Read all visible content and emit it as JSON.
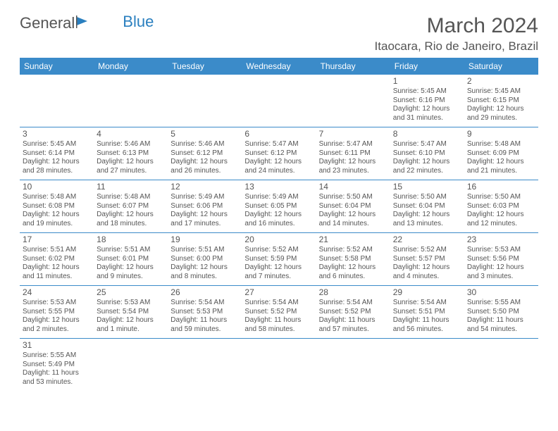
{
  "logo": {
    "text1": "General",
    "text2": "Blue",
    "icon_color": "#2a7fbf"
  },
  "title": "March 2024",
  "location": "Itaocara, Rio de Janeiro, Brazil",
  "colors": {
    "header_bg": "#3b8bc9",
    "header_text": "#ffffff",
    "border": "#3b8bc9",
    "text": "#555555"
  },
  "weekdays": [
    "Sunday",
    "Monday",
    "Tuesday",
    "Wednesday",
    "Thursday",
    "Friday",
    "Saturday"
  ],
  "weeks": [
    [
      null,
      null,
      null,
      null,
      null,
      {
        "n": "1",
        "sr": "Sunrise: 5:45 AM",
        "ss": "Sunset: 6:16 PM",
        "dl": "Daylight: 12 hours and 31 minutes."
      },
      {
        "n": "2",
        "sr": "Sunrise: 5:45 AM",
        "ss": "Sunset: 6:15 PM",
        "dl": "Daylight: 12 hours and 29 minutes."
      }
    ],
    [
      {
        "n": "3",
        "sr": "Sunrise: 5:45 AM",
        "ss": "Sunset: 6:14 PM",
        "dl": "Daylight: 12 hours and 28 minutes."
      },
      {
        "n": "4",
        "sr": "Sunrise: 5:46 AM",
        "ss": "Sunset: 6:13 PM",
        "dl": "Daylight: 12 hours and 27 minutes."
      },
      {
        "n": "5",
        "sr": "Sunrise: 5:46 AM",
        "ss": "Sunset: 6:12 PM",
        "dl": "Daylight: 12 hours and 26 minutes."
      },
      {
        "n": "6",
        "sr": "Sunrise: 5:47 AM",
        "ss": "Sunset: 6:12 PM",
        "dl": "Daylight: 12 hours and 24 minutes."
      },
      {
        "n": "7",
        "sr": "Sunrise: 5:47 AM",
        "ss": "Sunset: 6:11 PM",
        "dl": "Daylight: 12 hours and 23 minutes."
      },
      {
        "n": "8",
        "sr": "Sunrise: 5:47 AM",
        "ss": "Sunset: 6:10 PM",
        "dl": "Daylight: 12 hours and 22 minutes."
      },
      {
        "n": "9",
        "sr": "Sunrise: 5:48 AM",
        "ss": "Sunset: 6:09 PM",
        "dl": "Daylight: 12 hours and 21 minutes."
      }
    ],
    [
      {
        "n": "10",
        "sr": "Sunrise: 5:48 AM",
        "ss": "Sunset: 6:08 PM",
        "dl": "Daylight: 12 hours and 19 minutes."
      },
      {
        "n": "11",
        "sr": "Sunrise: 5:48 AM",
        "ss": "Sunset: 6:07 PM",
        "dl": "Daylight: 12 hours and 18 minutes."
      },
      {
        "n": "12",
        "sr": "Sunrise: 5:49 AM",
        "ss": "Sunset: 6:06 PM",
        "dl": "Daylight: 12 hours and 17 minutes."
      },
      {
        "n": "13",
        "sr": "Sunrise: 5:49 AM",
        "ss": "Sunset: 6:05 PM",
        "dl": "Daylight: 12 hours and 16 minutes."
      },
      {
        "n": "14",
        "sr": "Sunrise: 5:50 AM",
        "ss": "Sunset: 6:04 PM",
        "dl": "Daylight: 12 hours and 14 minutes."
      },
      {
        "n": "15",
        "sr": "Sunrise: 5:50 AM",
        "ss": "Sunset: 6:04 PM",
        "dl": "Daylight: 12 hours and 13 minutes."
      },
      {
        "n": "16",
        "sr": "Sunrise: 5:50 AM",
        "ss": "Sunset: 6:03 PM",
        "dl": "Daylight: 12 hours and 12 minutes."
      }
    ],
    [
      {
        "n": "17",
        "sr": "Sunrise: 5:51 AM",
        "ss": "Sunset: 6:02 PM",
        "dl": "Daylight: 12 hours and 11 minutes."
      },
      {
        "n": "18",
        "sr": "Sunrise: 5:51 AM",
        "ss": "Sunset: 6:01 PM",
        "dl": "Daylight: 12 hours and 9 minutes."
      },
      {
        "n": "19",
        "sr": "Sunrise: 5:51 AM",
        "ss": "Sunset: 6:00 PM",
        "dl": "Daylight: 12 hours and 8 minutes."
      },
      {
        "n": "20",
        "sr": "Sunrise: 5:52 AM",
        "ss": "Sunset: 5:59 PM",
        "dl": "Daylight: 12 hours and 7 minutes."
      },
      {
        "n": "21",
        "sr": "Sunrise: 5:52 AM",
        "ss": "Sunset: 5:58 PM",
        "dl": "Daylight: 12 hours and 6 minutes."
      },
      {
        "n": "22",
        "sr": "Sunrise: 5:52 AM",
        "ss": "Sunset: 5:57 PM",
        "dl": "Daylight: 12 hours and 4 minutes."
      },
      {
        "n": "23",
        "sr": "Sunrise: 5:53 AM",
        "ss": "Sunset: 5:56 PM",
        "dl": "Daylight: 12 hours and 3 minutes."
      }
    ],
    [
      {
        "n": "24",
        "sr": "Sunrise: 5:53 AM",
        "ss": "Sunset: 5:55 PM",
        "dl": "Daylight: 12 hours and 2 minutes."
      },
      {
        "n": "25",
        "sr": "Sunrise: 5:53 AM",
        "ss": "Sunset: 5:54 PM",
        "dl": "Daylight: 12 hours and 1 minute."
      },
      {
        "n": "26",
        "sr": "Sunrise: 5:54 AM",
        "ss": "Sunset: 5:53 PM",
        "dl": "Daylight: 11 hours and 59 minutes."
      },
      {
        "n": "27",
        "sr": "Sunrise: 5:54 AM",
        "ss": "Sunset: 5:52 PM",
        "dl": "Daylight: 11 hours and 58 minutes."
      },
      {
        "n": "28",
        "sr": "Sunrise: 5:54 AM",
        "ss": "Sunset: 5:52 PM",
        "dl": "Daylight: 11 hours and 57 minutes."
      },
      {
        "n": "29",
        "sr": "Sunrise: 5:54 AM",
        "ss": "Sunset: 5:51 PM",
        "dl": "Daylight: 11 hours and 56 minutes."
      },
      {
        "n": "30",
        "sr": "Sunrise: 5:55 AM",
        "ss": "Sunset: 5:50 PM",
        "dl": "Daylight: 11 hours and 54 minutes."
      }
    ],
    [
      {
        "n": "31",
        "sr": "Sunrise: 5:55 AM",
        "ss": "Sunset: 5:49 PM",
        "dl": "Daylight: 11 hours and 53 minutes."
      },
      null,
      null,
      null,
      null,
      null,
      null
    ]
  ]
}
